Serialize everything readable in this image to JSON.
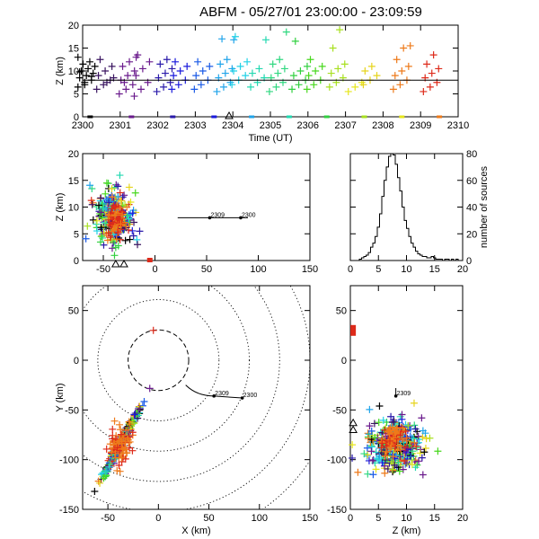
{
  "chart_data": [
    {
      "type": "scatter",
      "id": "time-height",
      "title": "ABFM - 05/27/01 23:00:00 - 23:09:59",
      "xlabel": "Time (UT)",
      "ylabel": "Z (km)",
      "xlim": [
        2300,
        2310
      ],
      "ylim": [
        0,
        20
      ],
      "xticks": [
        2300,
        2301,
        2302,
        2303,
        2304,
        2305,
        2306,
        2307,
        2308,
        2309,
        2310
      ],
      "yticks": [
        0,
        5,
        10,
        15,
        20
      ],
      "reference_line_z": 8,
      "ground_markers": [
        2300.2,
        2301.3,
        2302.4,
        2303.5,
        2304.5,
        2305.5,
        2306.5,
        2307.5,
        2308.5,
        2309.5
      ],
      "station_triangle_x": 2303.9,
      "groups": [
        {
          "t": 2300.1,
          "color": "#000000",
          "z": [
            6.5,
            7.5,
            8.0,
            8.5,
            9.0,
            9.5,
            10.0,
            10.5,
            11.0,
            11.5,
            12.0,
            13.0,
            7.0,
            8.8,
            9.8
          ]
        },
        {
          "t": 2300.6,
          "color": "#3a1560",
          "z": [
            6.0,
            7.0,
            8.0,
            9.0,
            10.0,
            11.0,
            12.5,
            7.5,
            8.5
          ]
        },
        {
          "t": 2301.2,
          "color": "#6a1a8c",
          "z": [
            5.0,
            6.0,
            7.0,
            8.0,
            9.0,
            10.0,
            11.0,
            12.0,
            13.0,
            7.5
          ]
        },
        {
          "t": 2301.6,
          "color": "#6a1a8c",
          "z": [
            4.5,
            6.0,
            7.5,
            9.0,
            10.5,
            12.0,
            13.5
          ]
        },
        {
          "t": 2302.2,
          "color": "#2a1aaa",
          "z": [
            5.5,
            6.5,
            7.5,
            8.5,
            9.5,
            10.5,
            11.5,
            12.5
          ]
        },
        {
          "t": 2302.6,
          "color": "#1a1adc",
          "z": [
            6.0,
            7.0,
            8.0,
            9.0,
            10.0,
            11.0,
            12.0
          ]
        },
        {
          "t": 2303.2,
          "color": "#1a5ae6",
          "z": [
            6.0,
            7.0,
            8.0,
            9.0,
            10.0,
            11.0,
            12.0
          ]
        },
        {
          "t": 2303.8,
          "color": "#20a4ea",
          "z": [
            5.5,
            6.5,
            7.5,
            8.5,
            9.5,
            10.5,
            11.5,
            12.5,
            16.8,
            17.0
          ]
        },
        {
          "t": 2304.2,
          "color": "#22d2e6",
          "z": [
            7.0,
            8.0,
            9.0,
            10.0,
            11.0,
            12.0,
            17.5
          ]
        },
        {
          "t": 2304.7,
          "color": "#22d8b0",
          "z": [
            6.5,
            7.5,
            8.5,
            9.5,
            10.5,
            16.8
          ]
        },
        {
          "t": 2305.2,
          "color": "#30d880",
          "z": [
            5.5,
            6.5,
            7.5,
            8.5,
            9.5,
            10.5,
            11.5,
            12.5,
            18.5
          ]
        },
        {
          "t": 2305.8,
          "color": "#32d040",
          "z": [
            6.0,
            7.0,
            8.0,
            9.0,
            10.0,
            11.0,
            16.5
          ]
        },
        {
          "t": 2306.2,
          "color": "#48d81e",
          "z": [
            6.0,
            7.0,
            8.0,
            9.0,
            10.0,
            11.0,
            12.5
          ]
        },
        {
          "t": 2306.8,
          "color": "#a8e020",
          "z": [
            6.5,
            7.5,
            8.5,
            9.5,
            10.5,
            11.5,
            15.0,
            19.0
          ]
        },
        {
          "t": 2307.3,
          "color": "#e6e61c",
          "z": [
            5.5,
            6.5,
            7.5
          ]
        },
        {
          "t": 2307.7,
          "color": "#e6d41c",
          "z": [
            7.0,
            8.0,
            9.0,
            10.0,
            11.0
          ]
        },
        {
          "t": 2308.5,
          "color": "#ee7a1a",
          "z": [
            6.0,
            7.0,
            8.0,
            9.0,
            10.0,
            11.0,
            12.5,
            15.0,
            15.5
          ]
        },
        {
          "t": 2309.3,
          "color": "#dd2a1a",
          "z": [
            5.5,
            6.5,
            7.5,
            8.5,
            9.5,
            10.5,
            11.5,
            13.5
          ]
        }
      ]
    },
    {
      "type": "scatter",
      "id": "x-z",
      "xlabel": "",
      "ylabel": "Z (km)",
      "xlim": [
        -70,
        150
      ],
      "ylim": [
        0,
        20
      ],
      "xticks": [
        -50,
        0,
        50,
        100,
        150
      ],
      "yticks": [
        0,
        5,
        10,
        15,
        20
      ],
      "track": {
        "z": 8,
        "x_start": 22,
        "x_end": 90,
        "label_a": "2309",
        "label_a_x": 53,
        "label_b": "2300",
        "label_b_x": 83
      },
      "stations": [
        -30,
        -38
      ],
      "ground_point_x": -5
    },
    {
      "type": "bar",
      "id": "histogram",
      "xlabel": "",
      "ylabel": "number of sources",
      "xlim": [
        0,
        20
      ],
      "ylim": [
        0,
        80
      ],
      "xticks": [
        0,
        5,
        10,
        15,
        20
      ],
      "yticks": [
        0,
        20,
        40,
        60,
        80
      ],
      "bin_width": 0.4,
      "bin_starts": [
        1.6,
        2.0,
        2.4,
        2.8,
        3.2,
        3.6,
        4.0,
        4.4,
        4.8,
        5.2,
        5.6,
        6.0,
        6.4,
        6.8,
        7.2,
        7.6,
        8.0,
        8.4,
        8.8,
        9.2,
        9.6,
        10.0,
        10.4,
        10.8,
        11.2,
        11.6,
        12.0,
        12.4,
        12.8,
        13.2,
        13.6,
        14.0,
        14.4,
        14.8,
        15.2,
        15.6,
        16.0,
        16.4,
        16.8,
        17.2,
        17.6,
        18.0,
        18.4,
        18.8
      ],
      "counts": [
        1,
        2,
        3,
        4,
        6,
        10,
        13,
        18,
        25,
        35,
        48,
        60,
        70,
        78,
        80,
        79,
        72,
        62,
        52,
        40,
        30,
        24,
        18,
        13,
        10,
        7,
        5,
        4,
        3,
        3,
        2,
        2,
        3,
        2,
        1,
        1,
        1,
        0,
        1,
        1,
        0,
        1,
        0,
        1
      ]
    },
    {
      "type": "scatter",
      "id": "x-y",
      "xlabel": "X (km)",
      "ylabel": "Y (km)",
      "xlim": [
        -75,
        150
      ],
      "ylim": [
        -150,
        75
      ],
      "xticks": [
        -50,
        0,
        50,
        100,
        150
      ],
      "yticks": [
        -150,
        -100,
        -50,
        0,
        50
      ],
      "range_rings_km": [
        30,
        60,
        90,
        120,
        150,
        180
      ],
      "cluster_center": [
        -38,
        -85
      ],
      "isolated_point": [
        -5,
        30
      ],
      "track_label_a": "2309",
      "track_label_b": "2300"
    },
    {
      "type": "scatter",
      "id": "z-y",
      "xlabel": "Z (km)",
      "ylabel": "",
      "xlim": [
        0,
        20
      ],
      "ylim": [
        -150,
        75
      ],
      "xticks": [
        0,
        5,
        10,
        15,
        20
      ],
      "yticks": [
        -150,
        -100,
        -50,
        0,
        50
      ],
      "track_label": "2309",
      "station_y": [
        -63,
        -70
      ],
      "isolated_point": [
        0.5,
        30
      ]
    }
  ]
}
